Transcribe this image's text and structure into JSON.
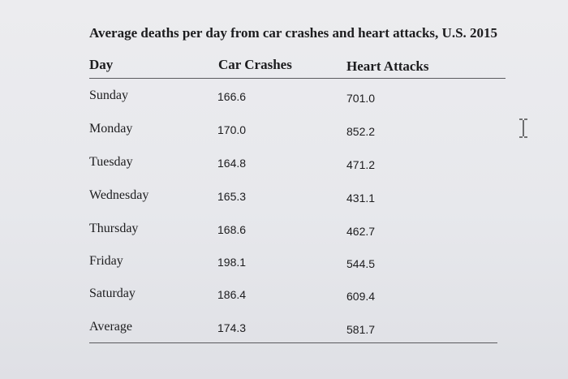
{
  "table": {
    "title": "Average deaths per day from car crashes and heart attacks, U.S. 2015",
    "headers": [
      "Day",
      "Car Crashes",
      "Heart Attacks"
    ],
    "rows": [
      {
        "day": "Sunday",
        "car": "166.6",
        "heart": "701.0"
      },
      {
        "day": "Monday",
        "car": "170.0",
        "heart": "852.2"
      },
      {
        "day": "Tuesday",
        "car": "164.8",
        "heart": "471.2"
      },
      {
        "day": "Wednesday",
        "car": "165.3",
        "heart": "431.1"
      },
      {
        "day": "Thursday",
        "car": "168.6",
        "heart": "462.7"
      },
      {
        "day": "Friday",
        "car": "198.1",
        "heart": "544.5"
      },
      {
        "day": "Saturday",
        "car": "186.4",
        "heart": "609.4"
      },
      {
        "day": "Average",
        "car": "174.3",
        "heart": "581.7"
      }
    ]
  },
  "cursor": {
    "icon": "text-cursor-icon"
  }
}
